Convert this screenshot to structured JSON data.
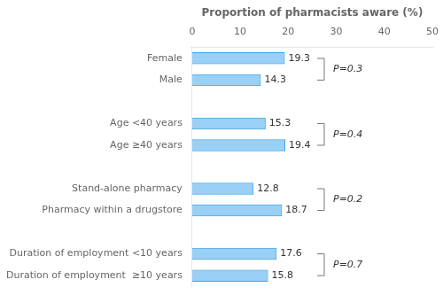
{
  "chart_data": {
    "type": "bar",
    "orientation": "horizontal",
    "categories": [
      "Duration of employment  ≥10 years",
      "Duration of employment <10 years",
      null,
      "Pharmacy within a drugstore",
      "Stand-alone pharmacy",
      null,
      "Age ≥40 years",
      "Age <40 years",
      null,
      "Male",
      "Female"
    ],
    "values": [
      15.8,
      17.6,
      null,
      18.7,
      12.8,
      null,
      19.4,
      15.3,
      null,
      14.3,
      19.3
    ],
    "xlabel": "Proportion of pharmacists aware (%)",
    "xlim": [
      0,
      50
    ],
    "xticks": [
      0,
      10,
      20,
      30,
      40,
      50
    ],
    "data_labels": true,
    "grid": false,
    "annotations": [
      {
        "text": "P=0.7",
        "between": [
          "Duration of employment  ≥10 years",
          "Duration of employment <10 years"
        ]
      },
      {
        "text": "P=0.2",
        "between": [
          "Pharmacy within a drugstore",
          "Stand-alone pharmacy"
        ]
      },
      {
        "text": "P=0.4",
        "between": [
          "Age ≥40 years",
          "Age <40 years"
        ]
      },
      {
        "text": "P=0.3",
        "between": [
          "Male",
          "Female"
        ]
      }
    ]
  }
}
